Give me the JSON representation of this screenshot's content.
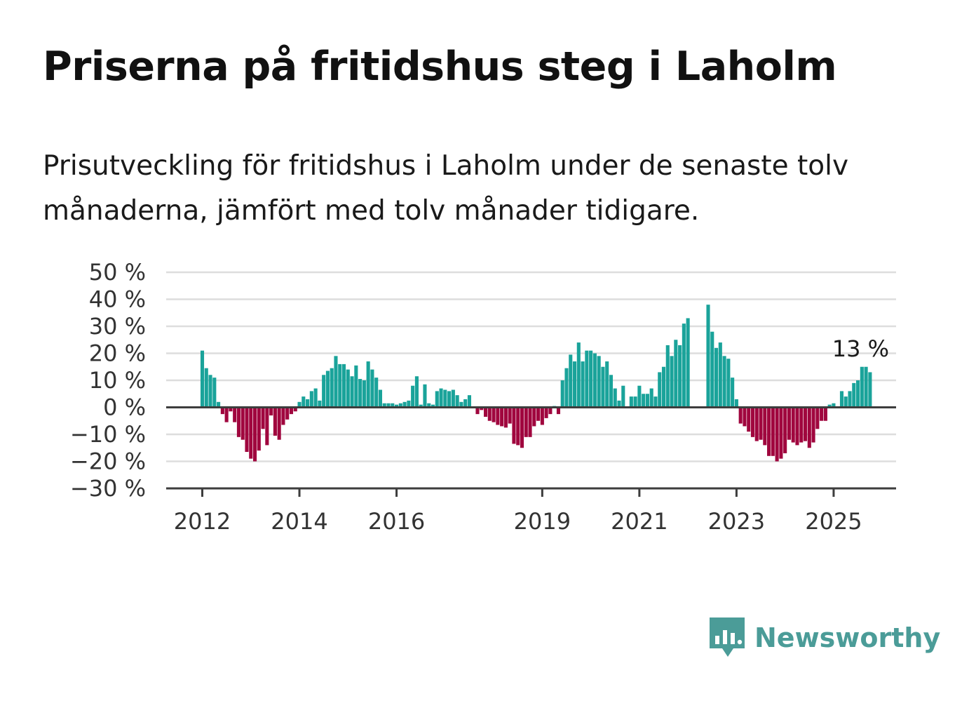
{
  "title": "Priserna på fritidshus steg i Laholm",
  "subtitle": "Prisutveckling för fritidshus i Laholm under de senaste tolv månaderna, jämfört med tolv månader tidigare.",
  "brand": {
    "name": "Newsworthy",
    "icon": "newsworthy-logo-icon"
  },
  "colors": {
    "positive": "#1aa39a",
    "negative": "#a0063e",
    "grid": "#dddddd",
    "axis": "#444444"
  },
  "chart_data": {
    "type": "bar",
    "title": "",
    "xlabel": "",
    "ylabel": "",
    "y_ticks": [
      "50 %",
      "40 %",
      "30 %",
      "20 %",
      "10 %",
      "0 %",
      "−10 %",
      "−20 %",
      "−30 %"
    ],
    "ylim": [
      -30,
      50
    ],
    "x_ticks": [
      "2012",
      "2014",
      "2016",
      "2019",
      "2021",
      "2023",
      "2025"
    ],
    "x_tick_positions_months": [
      0,
      24,
      48,
      84,
      108,
      132,
      156
    ],
    "start_month": "2012-01",
    "last_value_label": "13 %",
    "grid": true,
    "values": [
      21,
      14.5,
      12,
      11,
      2,
      -2.5,
      -5.5,
      -1.5,
      -5.5,
      -11,
      -12,
      -16.5,
      -19,
      -20,
      -16,
      -8,
      -14,
      -3,
      -10.5,
      -12,
      -6.5,
      -4.5,
      -2.5,
      -1.5,
      2,
      4,
      3,
      6,
      7,
      2.5,
      12,
      13.5,
      14.5,
      19,
      16,
      16,
      14,
      11.5,
      15.5,
      10.5,
      10,
      17,
      14,
      11,
      6.5,
      1.5,
      1.5,
      1.5,
      1,
      1.5,
      2,
      2.5,
      8,
      11.5,
      1,
      8.5,
      1.5,
      1,
      6,
      7,
      6.5,
      6,
      6.5,
      4.5,
      2,
      3,
      4.5,
      null,
      -2.5,
      -1,
      -3.5,
      -5,
      -5.5,
      -6.5,
      -7,
      -7.5,
      -6,
      -13.5,
      -14,
      -15,
      -11,
      -11,
      -7,
      -5,
      -6.5,
      -4,
      -2.5,
      0.5,
      -2.5,
      10,
      14.5,
      19.5,
      17,
      24,
      17,
      21,
      21,
      20,
      19,
      15,
      17,
      12,
      7,
      2.5,
      8,
      null,
      4,
      4,
      8,
      5,
      5,
      7,
      4,
      13,
      15,
      23,
      19,
      25,
      23,
      31,
      33,
      null,
      null,
      null,
      null,
      38,
      28,
      22,
      24,
      19,
      18,
      11,
      3,
      -6,
      -7,
      -9,
      -11,
      -12.5,
      -12,
      -14,
      -18,
      -18,
      -20,
      -19,
      -17,
      -12,
      -13,
      -14,
      -13,
      -12.5,
      -15,
      -13,
      -8,
      -5,
      -5,
      1,
      1.5,
      null,
      6,
      4,
      6,
      9,
      10,
      15,
      15,
      13
    ]
  }
}
